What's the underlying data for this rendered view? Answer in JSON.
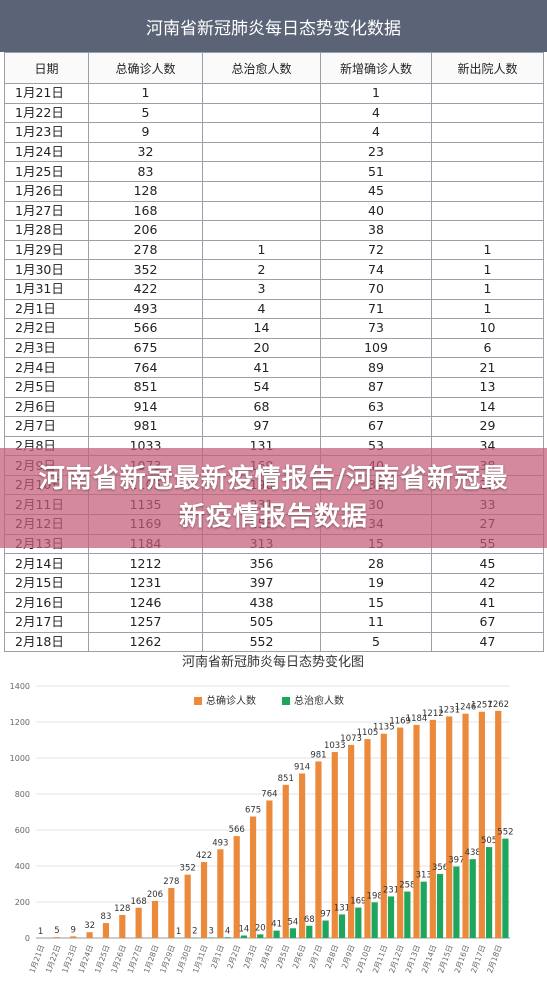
{
  "table": {
    "title": "河南省新冠肺炎每日态势变化数据",
    "headers": [
      "日期",
      "总确诊人数",
      "总治愈人数",
      "新增确诊人数",
      "新出院人数"
    ],
    "rows": [
      [
        "1月21日",
        "1",
        "",
        "1",
        ""
      ],
      [
        "1月22日",
        "5",
        "",
        "4",
        ""
      ],
      [
        "1月23日",
        "9",
        "",
        "4",
        ""
      ],
      [
        "1月24日",
        "32",
        "",
        "23",
        ""
      ],
      [
        "1月25日",
        "83",
        "",
        "51",
        ""
      ],
      [
        "1月26日",
        "128",
        "",
        "45",
        ""
      ],
      [
        "1月27日",
        "168",
        "",
        "40",
        ""
      ],
      [
        "1月28日",
        "206",
        "",
        "38",
        ""
      ],
      [
        "1月29日",
        "278",
        "1",
        "72",
        "1"
      ],
      [
        "1月30日",
        "352",
        "2",
        "74",
        "1"
      ],
      [
        "1月31日",
        "422",
        "3",
        "70",
        "1"
      ],
      [
        "2月1日",
        "493",
        "4",
        "71",
        "1"
      ],
      [
        "2月2日",
        "566",
        "14",
        "73",
        "10"
      ],
      [
        "2月3日",
        "675",
        "20",
        "109",
        "6"
      ],
      [
        "2月4日",
        "764",
        "41",
        "89",
        "21"
      ],
      [
        "2月5日",
        "851",
        "54",
        "87",
        "13"
      ],
      [
        "2月6日",
        "914",
        "68",
        "63",
        "14"
      ],
      [
        "2月7日",
        "981",
        "97",
        "67",
        "29"
      ],
      [
        "2月8日",
        "1033",
        "131",
        "53",
        "34"
      ],
      [
        "2月9日",
        "1073",
        "169",
        "40",
        "38"
      ],
      [
        "2月10日",
        "1105",
        "198",
        "32",
        "29"
      ],
      [
        "2月11日",
        "1135",
        "231",
        "30",
        "33"
      ],
      [
        "2月12日",
        "1169",
        "258",
        "34",
        "27"
      ],
      [
        "2月13日",
        "1184",
        "313",
        "15",
        "55"
      ],
      [
        "2月14日",
        "1212",
        "356",
        "28",
        "45"
      ],
      [
        "2月15日",
        "1231",
        "397",
        "19",
        "42"
      ],
      [
        "2月16日",
        "1246",
        "438",
        "15",
        "41"
      ],
      [
        "2月17日",
        "1257",
        "505",
        "11",
        "67"
      ],
      [
        "2月18日",
        "1262",
        "552",
        "5",
        "47"
      ]
    ]
  },
  "overlay": {
    "text": "河南省新冠最新疫情报告/河南省新冠最新疫情报告数据"
  },
  "colors": {
    "title_bar": "#5b6376",
    "series_confirmed": "#ec8a3c",
    "series_cured": "#1fa65e",
    "overlay": "#c45c76"
  },
  "chart_data": {
    "type": "bar",
    "title": "河南省新冠肺炎每日态势变化图",
    "categories": [
      "1月21日",
      "1月22日",
      "1月23日",
      "1月24日",
      "1月25日",
      "1月26日",
      "1月27日",
      "1月28日",
      "1月29日",
      "1月30日",
      "1月31日",
      "2月1日",
      "2月2日",
      "2月3日",
      "2月4日",
      "2月5日",
      "2月6日",
      "2月7日",
      "2月8日",
      "2月9日",
      "2月10日",
      "2月11日",
      "2月12日",
      "2月13日",
      "2月14日",
      "2月15日",
      "2月16日",
      "2月17日",
      "2月18日"
    ],
    "series": [
      {
        "name": "总确诊人数",
        "values": [
          1,
          5,
          9,
          32,
          83,
          128,
          168,
          206,
          278,
          352,
          422,
          493,
          566,
          675,
          764,
          851,
          914,
          981,
          1033,
          1073,
          1105,
          1135,
          1169,
          1184,
          1212,
          1231,
          1246,
          1257,
          1262
        ]
      },
      {
        "name": "总治愈人数",
        "values": [
          0,
          0,
          0,
          0,
          0,
          0,
          0,
          0,
          1,
          2,
          3,
          4,
          14,
          20,
          41,
          54,
          68,
          97,
          131,
          169,
          198,
          231,
          258,
          313,
          356,
          397,
          438,
          505,
          552
        ]
      }
    ],
    "ylim": [
      0,
      1400
    ],
    "yticks": [
      0,
      200,
      400,
      600,
      800,
      1000,
      1200,
      1400
    ],
    "legend": "top-center",
    "grid": true
  }
}
